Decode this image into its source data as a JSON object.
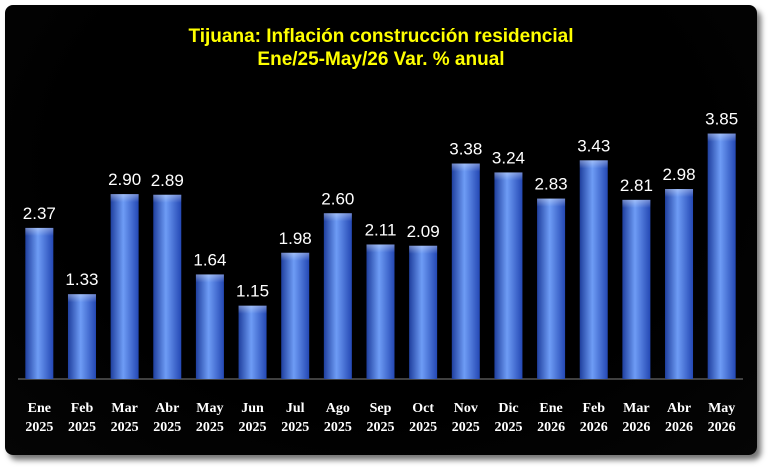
{
  "chart_data": {
    "type": "bar",
    "title": "Tijuana: Inflación construcción residencial",
    "subtitle": "Ene/25-May/26 Var. % anual",
    "categories": [
      [
        "Ene",
        "2025"
      ],
      [
        "Feb",
        "2025"
      ],
      [
        "Mar",
        "2025"
      ],
      [
        "Abr",
        "2025"
      ],
      [
        "May",
        "2025"
      ],
      [
        "Jun",
        "2025"
      ],
      [
        "Jul",
        "2025"
      ],
      [
        "Ago",
        "2025"
      ],
      [
        "Sep",
        "2025"
      ],
      [
        "Oct",
        "2025"
      ],
      [
        "Nov",
        "2025"
      ],
      [
        "Dic",
        "2025"
      ],
      [
        "Ene",
        "2026"
      ],
      [
        "Feb",
        "2026"
      ],
      [
        "Mar",
        "2026"
      ],
      [
        "Abr",
        "2026"
      ],
      [
        "May",
        "2026"
      ]
    ],
    "values": [
      2.37,
      1.33,
      2.9,
      2.89,
      1.64,
      1.15,
      1.98,
      2.6,
      2.11,
      2.09,
      3.38,
      3.24,
      2.83,
      3.43,
      2.81,
      2.98,
      3.85
    ],
    "value_labels": [
      "2.37",
      "1.33",
      "2.90",
      "2.89",
      "1.64",
      "1.15",
      "1.98",
      "2.60",
      "2.11",
      "2.09",
      "3.38",
      "3.24",
      "2.83",
      "3.43",
      "2.81",
      "2.98",
      "3.85"
    ],
    "ylim": [
      0,
      4.8
    ],
    "grid": false,
    "legend": "none",
    "colors": {
      "background": "#000000",
      "bar_light": "#6e9cf5",
      "bar_dark": "#1f3f9e",
      "title": "#ffff00",
      "labels": "#ffffff"
    }
  }
}
